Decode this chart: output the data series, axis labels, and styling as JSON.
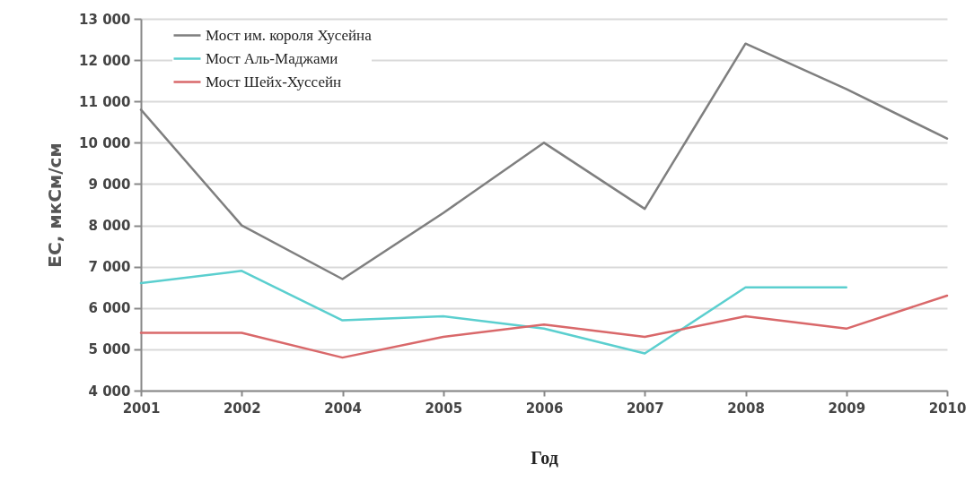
{
  "chart_data": {
    "type": "line",
    "xlabel": "Год",
    "ylabel": "EC, мкСм/см",
    "categories": [
      "2001",
      "2002",
      "2004",
      "2005",
      "2006",
      "2007",
      "2008",
      "2009",
      "2010"
    ],
    "series": [
      {
        "name": "Мост им. короля Хусейна",
        "color": "#7f7f7f",
        "values": [
          10800,
          8000,
          6700,
          8300,
          10000,
          8400,
          12400,
          11300,
          10100
        ]
      },
      {
        "name": "Мост Аль-Маджами",
        "color": "#5bcfcf",
        "values": [
          6600,
          6900,
          5700,
          5800,
          5500,
          4900,
          6500,
          6500,
          null
        ]
      },
      {
        "name": "Мост Шейх-Хуссейн",
        "color": "#d9686a",
        "values": [
          5400,
          5400,
          4800,
          5300,
          5600,
          5300,
          5800,
          5500,
          6300
        ]
      }
    ],
    "ylim": [
      4000,
      13000
    ],
    "yticks": [
      {
        "value": 4000,
        "label": "4 000"
      },
      {
        "value": 5000,
        "label": "5 000"
      },
      {
        "value": 6000,
        "label": "6 000"
      },
      {
        "value": 7000,
        "label": "7 000"
      },
      {
        "value": 8000,
        "label": "8 000"
      },
      {
        "value": 9000,
        "label": "9 000"
      },
      {
        "value": 10000,
        "label": "10 000"
      },
      {
        "value": 11000,
        "label": "11 000"
      },
      {
        "value": 12000,
        "label": "12 000"
      },
      {
        "value": 13000,
        "label": "13 000"
      }
    ],
    "grid": "y",
    "legend": "top left",
    "marker": "none",
    "line_style": "solid"
  }
}
